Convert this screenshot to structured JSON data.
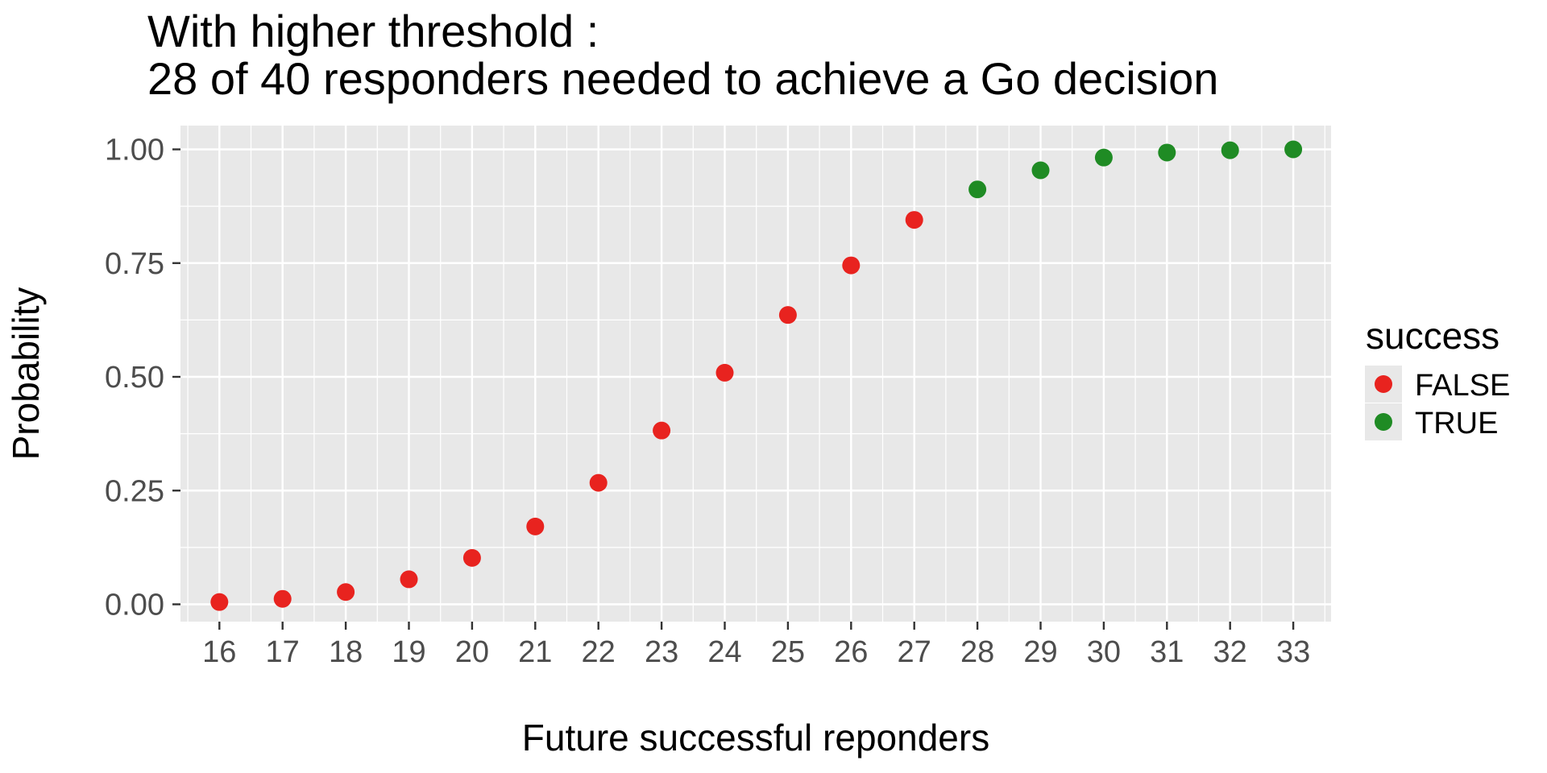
{
  "chart_data": {
    "type": "scatter",
    "title_line1": "With higher threshold :",
    "title_line2": "28 of 40 responders needed to achieve a Go decision",
    "xlabel": "Future successful reponders",
    "ylabel": "Probability",
    "x": [
      16,
      17,
      18,
      19,
      20,
      21,
      22,
      23,
      24,
      25,
      26,
      27,
      28,
      29,
      30,
      31,
      32,
      33
    ],
    "y": [
      0.005,
      0.012,
      0.027,
      0.055,
      0.102,
      0.171,
      0.267,
      0.382,
      0.509,
      0.636,
      0.745,
      0.845,
      0.912,
      0.954,
      0.982,
      0.993,
      0.998,
      1.0
    ],
    "success": [
      false,
      false,
      false,
      false,
      false,
      false,
      false,
      false,
      false,
      false,
      false,
      false,
      true,
      true,
      true,
      true,
      true,
      true
    ],
    "x_tick_labels": [
      "16",
      "17",
      "18",
      "19",
      "20",
      "21",
      "22",
      "23",
      "24",
      "25",
      "26",
      "27",
      "28",
      "29",
      "30",
      "31",
      "32",
      "33"
    ],
    "y_ticks": [
      {
        "label": "0.00",
        "value": 0.0
      },
      {
        "label": "0.25",
        "value": 0.25
      },
      {
        "label": "0.50",
        "value": 0.5
      },
      {
        "label": "0.75",
        "value": 0.75
      },
      {
        "label": "1.00",
        "value": 1.0
      }
    ],
    "ylim": [
      0,
      1
    ],
    "grid": true,
    "legend": {
      "position": "right",
      "title": "success",
      "entries": [
        {
          "label": "FALSE",
          "color": "#e8231f"
        },
        {
          "label": "TRUE",
          "color": "#1f8b24"
        }
      ]
    },
    "colors": {
      "false_point": "#e8231f",
      "true_point": "#1f8b24",
      "panel_background": "#e8e8e8",
      "gridline": "#ffffff",
      "tick_text": "#4d4d4d"
    }
  }
}
